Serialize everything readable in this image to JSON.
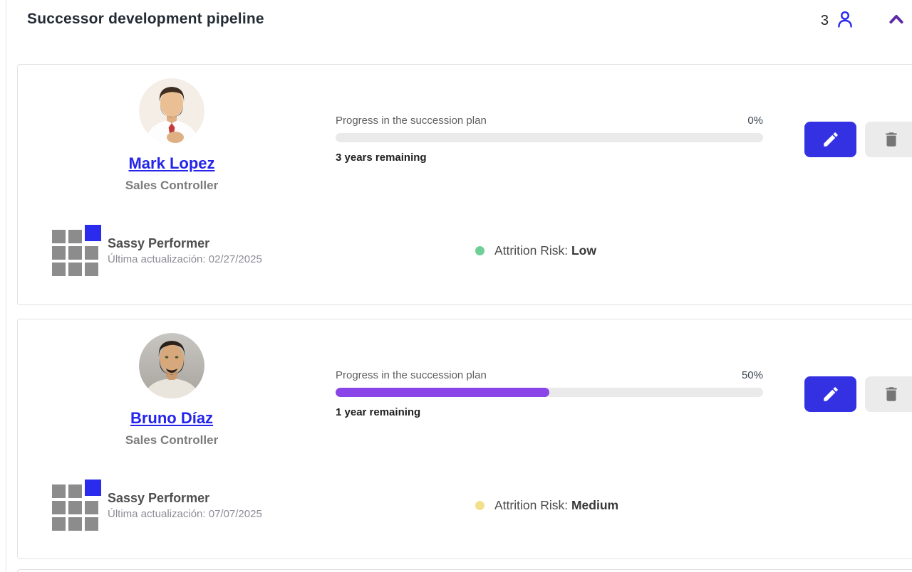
{
  "header": {
    "title": "Successor development pipeline",
    "count": "3"
  },
  "labels": {
    "progress": "Progress in the succession plan",
    "nine_box": "Sassy Performer",
    "attrition": "Attrition Risk:"
  },
  "colors": {
    "accent_blue": "#2B2BEE",
    "link_blue": "#2424EA",
    "edit_button_blue": "#3431E3",
    "progress_fill_purple": "#8A45E8",
    "chevron_purple": "#5B2AA8",
    "risk_low_green": "#6FCF97",
    "risk_medium_yellow": "#F2E18C"
  },
  "successors": [
    {
      "name": "Mark Lopez",
      "role": "Sales Controller",
      "progress_percent": "0%",
      "progress_value": 0,
      "time_remaining": "3 years remaining",
      "last_update": "Última actualización: 02/27/2025",
      "attrition_value": "Low",
      "attrition_color": "#6FCF97"
    },
    {
      "name": "Bruno Díaz",
      "role": "Sales Controller",
      "progress_percent": "50%",
      "progress_value": 50,
      "time_remaining": "1 year remaining",
      "last_update": "Última actualización: 07/07/2025",
      "attrition_value": "Medium",
      "attrition_color": "#F2E18C"
    }
  ]
}
